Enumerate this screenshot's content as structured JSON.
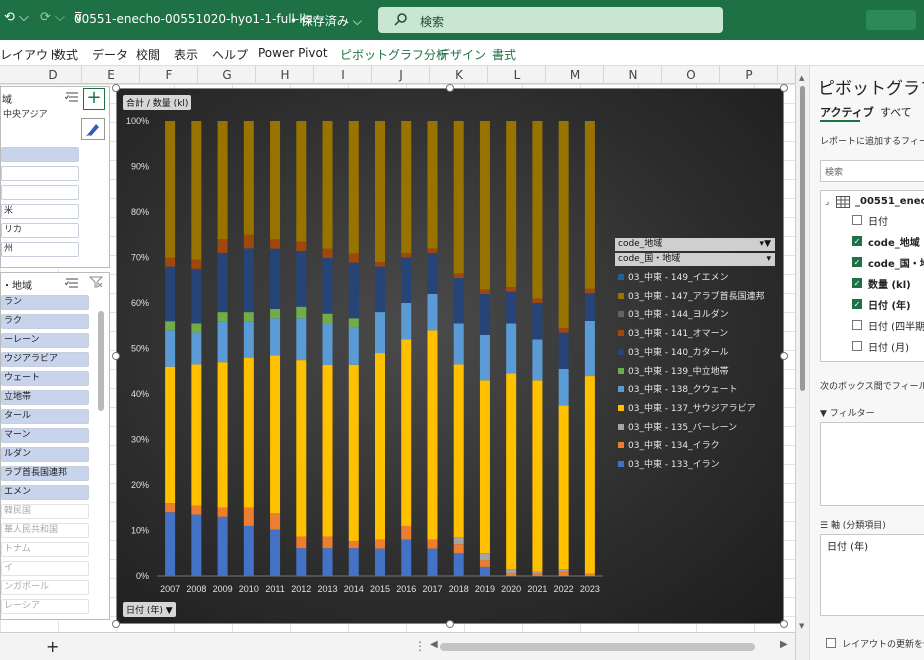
{
  "titlebar": {
    "filename": "00551-enecho-00551020-hyo1-1-full-lis···",
    "save_status": "• 保存済み ⌵",
    "search_placeholder": "検索"
  },
  "ribbon_tabs": [
    "レイアウト",
    "数式",
    "データ",
    "校閲",
    "表示",
    "ヘルプ",
    "Power Pivot",
    "ピボットグラフ分析",
    "デザイン",
    "書式"
  ],
  "columns": [
    "D",
    "E",
    "F",
    "G",
    "H",
    "I",
    "J",
    "K",
    "L",
    "M",
    "N",
    "O",
    "P"
  ],
  "slicer_top": {
    "header": "域",
    "items": [
      {
        "label": "中央アジア",
        "state": "plain"
      },
      {
        "label": "",
        "state": "plain"
      },
      {
        "label": "",
        "state": "sel"
      },
      {
        "label": "",
        "state": "un"
      },
      {
        "label": "",
        "state": "un"
      },
      {
        "label": "米",
        "state": "un"
      },
      {
        "label": "リカ",
        "state": "un"
      },
      {
        "label": "州",
        "state": "un"
      }
    ]
  },
  "slicer_region": {
    "header": "・地域",
    "items": [
      {
        "label": "ラン",
        "state": "sel"
      },
      {
        "label": "ラク",
        "state": "sel"
      },
      {
        "label": "ーレーン",
        "state": "sel"
      },
      {
        "label": "ウジアラビア",
        "state": "sel"
      },
      {
        "label": "ウェート",
        "state": "sel"
      },
      {
        "label": "立地帯",
        "state": "sel"
      },
      {
        "label": "タール",
        "state": "sel"
      },
      {
        "label": "マーン",
        "state": "sel"
      },
      {
        "label": "ルダン",
        "state": "sel"
      },
      {
        "label": "ラブ首長国連邦",
        "state": "sel"
      },
      {
        "label": "エメン",
        "state": "sel"
      },
      {
        "label": "韓民国",
        "state": "dim"
      },
      {
        "label": "華人民共和国",
        "state": "dim"
      },
      {
        "label": "トナム",
        "state": "dim"
      },
      {
        "label": "イ",
        "state": "dim"
      },
      {
        "label": "ンガポール",
        "state": "dim"
      },
      {
        "label": "レーシア",
        "state": "dim"
      }
    ]
  },
  "chart_field_buttons": {
    "value": "合計 / 数量 (kl)",
    "axis": "日付 (年) ▼",
    "legend_1": "code_地域",
    "legend_2": "code_国・地域"
  },
  "chart_data": {
    "type": "bar",
    "stacked": "percent",
    "categories": [
      "2007",
      "2008",
      "2009",
      "2010",
      "2011",
      "2012",
      "2013",
      "2014",
      "2015",
      "2016",
      "2017",
      "2018",
      "2019",
      "2020",
      "2021",
      "2022",
      "2023"
    ],
    "y_ticks": [
      "0%",
      "10%",
      "20%",
      "30%",
      "40%",
      "50%",
      "60%",
      "70%",
      "80%",
      "90%",
      "100%"
    ],
    "ylim": [
      0,
      1
    ],
    "grid": false,
    "legend_position": "right",
    "series": [
      {
        "name": "03_中東 - 133_イラン",
        "color": "#4472c4",
        "values": [
          0.14,
          0.135,
          0.13,
          0.11,
          0.1,
          0.06,
          0.06,
          0.06,
          0.06,
          0.08,
          0.06,
          0.05,
          0.02,
          0.0,
          0.0,
          0.0,
          0.0
        ]
      },
      {
        "name": "03_中東 - 134_イラク",
        "color": "#ed7d31",
        "values": [
          0.02,
          0.02,
          0.02,
          0.04,
          0.035,
          0.025,
          0.025,
          0.015,
          0.02,
          0.03,
          0.02,
          0.02,
          0.015,
          0.005,
          0.005,
          0.01,
          0.005
        ]
      },
      {
        "name": "03_中東 - 135_バーレーン",
        "color": "#a5a5a5",
        "values": [
          0.0,
          0.0,
          0.0,
          0.0,
          0.0,
          0.0,
          0.0,
          0.0,
          0.0,
          0.0,
          0.0,
          0.015,
          0.015,
          0.01,
          0.005,
          0.005,
          0.0
        ]
      },
      {
        "name": "03_中東 - 137_サウジアラビア",
        "color": "#ffc000",
        "values": [
          0.3,
          0.31,
          0.32,
          0.33,
          0.34,
          0.38,
          0.37,
          0.38,
          0.41,
          0.41,
          0.46,
          0.38,
          0.38,
          0.43,
          0.42,
          0.36,
          0.43
        ]
      },
      {
        "name": "03_中東 - 138_クウェート",
        "color": "#5b9bd5",
        "values": [
          0.08,
          0.07,
          0.09,
          0.08,
          0.08,
          0.09,
          0.09,
          0.08,
          0.09,
          0.08,
          0.08,
          0.09,
          0.1,
          0.11,
          0.09,
          0.08,
          0.12
        ]
      },
      {
        "name": "03_中東 - 139_中立地帯",
        "color": "#70ad47",
        "values": [
          0.02,
          0.02,
          0.02,
          0.02,
          0.02,
          0.025,
          0.02,
          0.02,
          0.0,
          0.0,
          0.0,
          0.0,
          0.0,
          0.0,
          0.0,
          0.0,
          0.0
        ]
      },
      {
        "name": "03_中東 - 140_カタール",
        "color": "#264478",
        "values": [
          0.12,
          0.12,
          0.13,
          0.14,
          0.13,
          0.12,
          0.12,
          0.12,
          0.1,
          0.1,
          0.09,
          0.1,
          0.09,
          0.07,
          0.08,
          0.08,
          0.06
        ]
      },
      {
        "name": "03_中東 - 141_オマーン",
        "color": "#9e480e",
        "values": [
          0.02,
          0.02,
          0.03,
          0.03,
          0.02,
          0.02,
          0.02,
          0.02,
          0.01,
          0.01,
          0.01,
          0.01,
          0.01,
          0.01,
          0.01,
          0.01,
          0.01
        ]
      },
      {
        "name": "03_中東 - 144_ヨルダン",
        "color": "#636363",
        "values": [
          0.0,
          0.0,
          0.0,
          0.0,
          0.0,
          0.0,
          0.0,
          0.0,
          0.0,
          0.0,
          0.0,
          0.0,
          0.0,
          0.0,
          0.0,
          0.0,
          0.0
        ]
      },
      {
        "name": "03_中東 - 147_アラブ首長国連邦",
        "color": "#997300",
        "values": [
          0.3,
          0.305,
          0.26,
          0.25,
          0.255,
          0.26,
          0.275,
          0.285,
          0.31,
          0.29,
          0.28,
          0.335,
          0.37,
          0.365,
          0.39,
          0.455,
          0.365
        ]
      },
      {
        "name": "03_中東 - 149_イエメン",
        "color": "#255e91",
        "values": [
          0.0,
          0.0,
          0.0,
          0.0,
          0.0,
          0.0,
          0.0,
          0.0,
          0.0,
          0.0,
          0.0,
          0.0,
          0.0,
          0.0,
          0.0,
          0.0,
          0.0
        ]
      }
    ]
  },
  "pivot_pane": {
    "title": "ピボットグラフの",
    "tab_active": "アクティブ",
    "tab_all": "すべて",
    "add_fields_label": "レポートに追加するフィール",
    "search_placeholder": "検索",
    "table_name": "_00551_enech",
    "fields": [
      {
        "label": "日付",
        "checked": false
      },
      {
        "label": "code_地域",
        "checked": true
      },
      {
        "label": "code_国・地",
        "checked": true
      },
      {
        "label": "数量 (kl)",
        "checked": true
      },
      {
        "label": "日付 (年)",
        "checked": true
      },
      {
        "label": "日付 (四半期",
        "checked": false
      },
      {
        "label": "日付 (月)",
        "checked": false
      }
    ],
    "drag_label": "次のボックス間でフィールド",
    "filter_label": "フィルター",
    "axis_label": "軸 (分類項目)",
    "axis_value": "日付 (年)",
    "defer_label": "レイアウトの更新を保"
  }
}
